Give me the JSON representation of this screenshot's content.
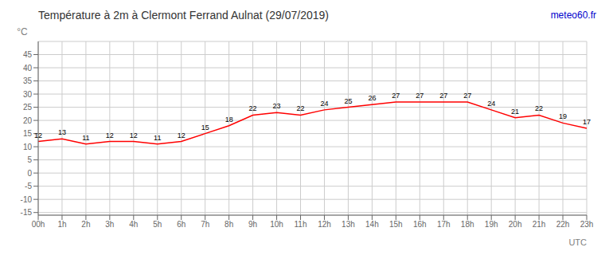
{
  "chart_data": {
    "type": "line",
    "title": "Température à 2m à Clermont Ferrand Aulnat (29/07/2019)",
    "ylabel": "°C",
    "xlabel": "UTC",
    "annotations": [
      {
        "text": "meteo60.fr",
        "color": "#0000cc"
      }
    ],
    "categories": [
      "00h",
      "1h",
      "2h",
      "3h",
      "4h",
      "5h",
      "6h",
      "7h",
      "8h",
      "9h",
      "10h",
      "11h",
      "12h",
      "13h",
      "14h",
      "15h",
      "16h",
      "17h",
      "18h",
      "19h",
      "20h",
      "21h",
      "22h",
      "23h"
    ],
    "values": [
      12,
      13,
      11,
      12,
      12,
      11,
      12,
      15,
      18,
      22,
      23,
      22,
      24,
      25,
      26,
      27,
      27,
      27,
      27,
      24,
      21,
      22,
      19,
      17
    ],
    "color": "#ff0000",
    "ylim": [
      -16,
      50
    ],
    "yticks": [
      -15,
      -10,
      -5,
      0,
      5,
      10,
      15,
      20,
      25,
      30,
      35,
      40,
      45
    ],
    "grid": true,
    "data_labels": true
  }
}
